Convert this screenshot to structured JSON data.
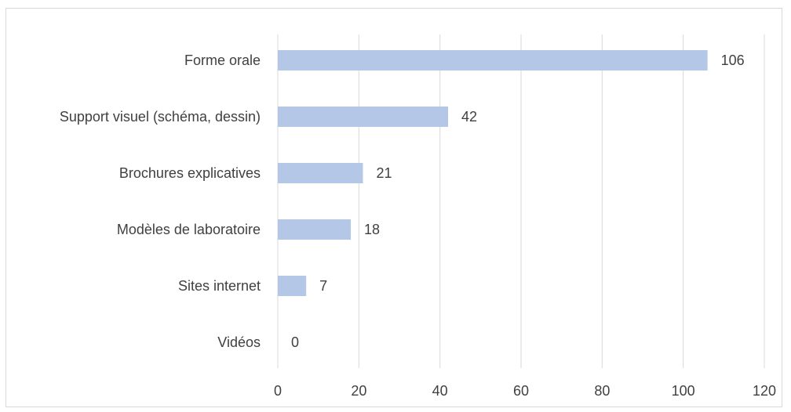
{
  "chart_data": {
    "type": "bar",
    "orientation": "horizontal",
    "categories": [
      "Forme orale",
      "Support visuel (schéma, dessin)",
      "Brochures explicatives",
      "Modèles de laboratoire",
      "Sites internet",
      "Vidéos"
    ],
    "values": [
      106,
      42,
      21,
      18,
      7,
      0
    ],
    "data_labels": [
      "106",
      "42",
      "21",
      "18",
      "7",
      "0"
    ],
    "xlim": [
      0,
      120
    ],
    "x_ticks": [
      0,
      20,
      40,
      60,
      80,
      100,
      120
    ],
    "x_tick_labels": [
      "0",
      "20",
      "40",
      "60",
      "80",
      "100",
      "120"
    ],
    "grid": true,
    "bar_color": "#b4c7e7",
    "gridline_color": "#d9d9d9",
    "text_color": "#404040",
    "border_color": "#d9d9d9"
  }
}
